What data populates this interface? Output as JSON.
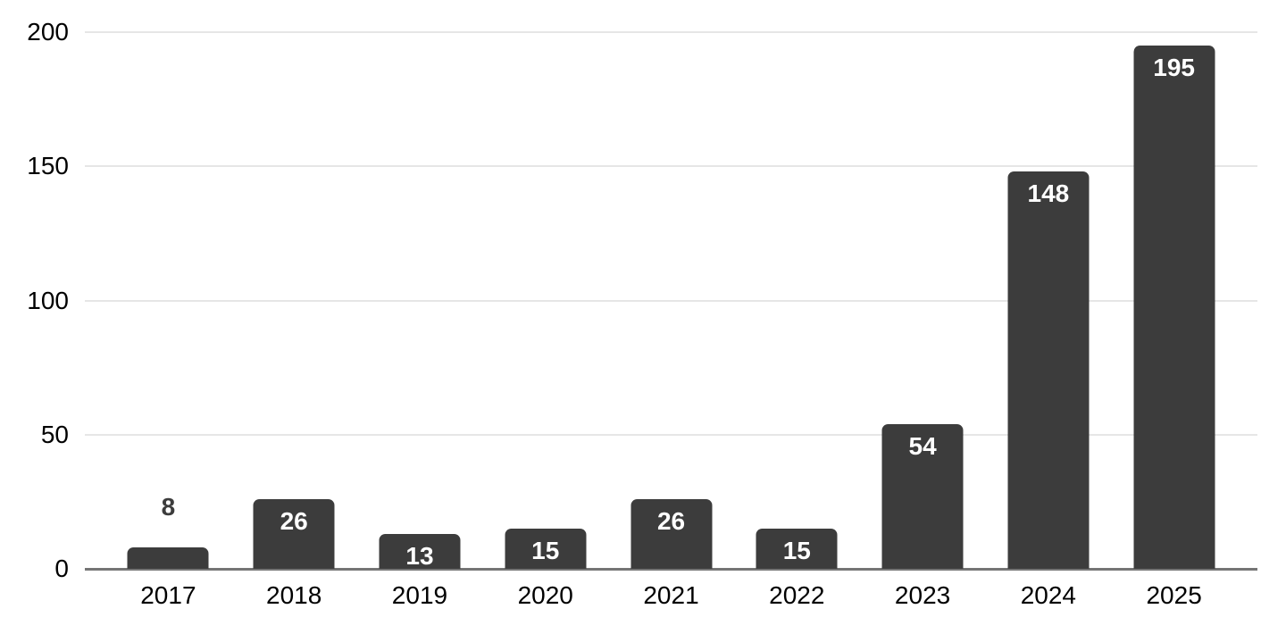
{
  "chart_data": {
    "type": "bar",
    "title": "",
    "xlabel": "",
    "ylabel": "",
    "categories": [
      "2017",
      "2018",
      "2019",
      "2020",
      "2021",
      "2022",
      "2023",
      "2024",
      "2025"
    ],
    "values": [
      8,
      26,
      13,
      15,
      26,
      15,
      54,
      148,
      195
    ],
    "annotations": [
      "8",
      "26",
      "13",
      "15",
      "26",
      "15",
      "54",
      "148",
      "195"
    ],
    "annotation_placement": [
      "outside",
      "inside",
      "inside",
      "inside",
      "inside",
      "inside",
      "inside",
      "inside",
      "inside"
    ],
    "ylim": [
      0,
      200
    ],
    "yticks": [
      0,
      50,
      100,
      150,
      200
    ],
    "grid": true,
    "legend": "none",
    "colors": {
      "bar_fill": "#3c3c3c",
      "annotation_inside": "#ffffff",
      "annotation_outside": "#3c3c3c",
      "axis_text": "#000000",
      "gridline": "#e6e6e6",
      "axis_line": "#757575",
      "background": "#ffffff"
    }
  }
}
